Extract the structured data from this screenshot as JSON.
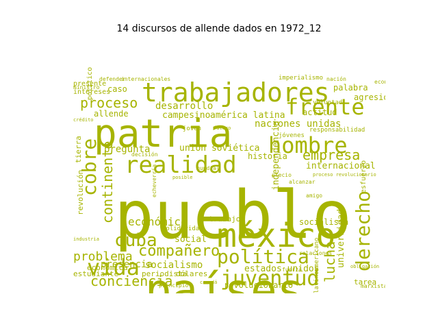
{
  "title": "14 discursos de allende dados en 1972_12",
  "colors": {
    "word": "#a6b400",
    "background": "#ffffff",
    "title": "#000000"
  },
  "words": [
    {
      "text": "pueblo",
      "size": 96,
      "orient": "h"
    },
    {
      "text": "países",
      "size": 64,
      "orient": "h"
    },
    {
      "text": "patria",
      "size": 56,
      "orient": "h"
    },
    {
      "text": "méxico",
      "size": 48,
      "orient": "h"
    },
    {
      "text": "trabajadores",
      "size": 38,
      "orient": "h"
    },
    {
      "text": "realidad",
      "size": 34,
      "orient": "h"
    },
    {
      "text": "frente",
      "size": 32,
      "orient": "h"
    },
    {
      "text": "hombre",
      "size": 32,
      "orient": "h"
    },
    {
      "text": "vida",
      "size": 32,
      "orient": "h"
    },
    {
      "text": "juventud",
      "size": 30,
      "orient": "h"
    },
    {
      "text": "política",
      "size": 28,
      "orient": "h"
    },
    {
      "text": "cobre",
      "size": 28,
      "orient": "v"
    },
    {
      "text": "derecho",
      "size": 28,
      "orient": "v"
    },
    {
      "text": "cuba",
      "size": 26,
      "orient": "h"
    },
    {
      "text": "compañero",
      "size": 22,
      "orient": "h"
    },
    {
      "text": "proceso",
      "size": 20,
      "orient": "h"
    },
    {
      "text": "empresa",
      "size": 20,
      "orient": "h"
    },
    {
      "text": "conciencia",
      "size": 20,
      "orient": "h"
    },
    {
      "text": "continente",
      "size": 20,
      "orient": "v"
    },
    {
      "text": "lucha",
      "size": 20,
      "orient": "v"
    },
    {
      "text": "problema",
      "size": 18,
      "orient": "h"
    },
    {
      "text": "económico",
      "size": 16,
      "orient": "h"
    },
    {
      "text": "naciones unidas",
      "size": 14,
      "orient": "h"
    },
    {
      "text": "desarrollo",
      "size": 14,
      "orient": "h"
    },
    {
      "text": "pregunta",
      "size": 14,
      "orient": "h"
    },
    {
      "text": "socialismo",
      "size": 14,
      "orient": "h"
    },
    {
      "text": "presencia",
      "size": 14,
      "orient": "h"
    },
    {
      "text": "estados unidos",
      "size": 13,
      "orient": "h"
    },
    {
      "text": "unión soviética",
      "size": 13,
      "orient": "h"
    },
    {
      "text": "internacional",
      "size": 13,
      "orient": "h"
    },
    {
      "text": "social",
      "size": 13,
      "orient": "h"
    },
    {
      "text": "independencia",
      "size": 13,
      "orient": "v"
    },
    {
      "text": "universidad",
      "size": 13,
      "orient": "v"
    },
    {
      "text": "campesino",
      "size": 13,
      "orient": "h"
    },
    {
      "text": "américa latina",
      "size": 13,
      "orient": "h"
    },
    {
      "text": "actitud",
      "size": 12,
      "orient": "h"
    },
    {
      "text": "agresión",
      "size": 12,
      "orient": "h"
    },
    {
      "text": "palabra",
      "size": 12,
      "orient": "h"
    },
    {
      "text": "allende",
      "size": 12,
      "orient": "h"
    },
    {
      "text": "caso",
      "size": 12,
      "orient": "h"
    },
    {
      "text": "historia",
      "size": 12,
      "orient": "h"
    },
    {
      "text": "socialista",
      "size": 12,
      "orient": "h"
    },
    {
      "text": "revolucionario",
      "size": 12,
      "orient": "h"
    },
    {
      "text": "tarea",
      "size": 11,
      "orient": "h"
    },
    {
      "text": "estudiante",
      "size": 11,
      "orient": "h"
    },
    {
      "text": "económica",
      "size": 11,
      "orient": "h"
    },
    {
      "text": "periodista",
      "size": 11,
      "orient": "h"
    },
    {
      "text": "dólares",
      "size": 11,
      "orient": "h"
    },
    {
      "text": "trabajo",
      "size": 11,
      "orient": "h"
    },
    {
      "text": "revolución",
      "size": 11,
      "orient": "v"
    },
    {
      "text": "tierra",
      "size": 11,
      "orient": "v"
    },
    {
      "text": "esfuerzo",
      "size": 10,
      "orient": "v"
    },
    {
      "text": "político",
      "size": 10,
      "orient": "v"
    },
    {
      "text": "intereses",
      "size": 10,
      "orient": "h"
    },
    {
      "text": "presente",
      "size": 10,
      "orient": "h"
    },
    {
      "text": "imperialismo",
      "size": 9,
      "orient": "h"
    },
    {
      "text": "latinoamericano",
      "size": 9,
      "orient": "v"
    },
    {
      "text": "solidaridad",
      "size": 9,
      "orient": "h"
    },
    {
      "text": "voluntad",
      "size": 9,
      "orient": "h"
    },
    {
      "text": "responsabilidad",
      "size": 9,
      "orient": "h"
    },
    {
      "text": "jóvenes",
      "size": 9,
      "orient": "h"
    },
    {
      "text": "joven",
      "size": 9,
      "orient": "h"
    },
    {
      "text": "principio",
      "size": 8,
      "orient": "h"
    },
    {
      "text": "internacionales",
      "size": 8,
      "orient": "h"
    },
    {
      "text": "nación",
      "size": 8,
      "orient": "h"
    },
    {
      "text": "mundial",
      "size": 8,
      "orient": "h"
    },
    {
      "text": "marxista",
      "size": 8,
      "orient": "h"
    },
    {
      "text": "amigo",
      "size": 8,
      "orient": "h"
    },
    {
      "text": "precio",
      "size": 8,
      "orient": "h"
    },
    {
      "text": "alcanzar",
      "size": 8,
      "orient": "h"
    },
    {
      "text": "defender",
      "size": 8,
      "orient": "h"
    },
    {
      "text": "echeverría",
      "size": 8,
      "orient": "v"
    },
    {
      "text": "decisión",
      "size": 8,
      "orient": "h"
    },
    {
      "text": "ministro",
      "size": 8,
      "orient": "h"
    },
    {
      "text": "relaciones",
      "size": 8,
      "orient": "h"
    },
    {
      "text": "fuerza",
      "size": 8,
      "orient": "h"
    },
    {
      "text": "economía",
      "size": 8,
      "orient": "h"
    },
    {
      "text": "proceso revolucionario",
      "size": 7,
      "orient": "h"
    },
    {
      "text": "futuro",
      "size": 7,
      "orient": "h"
    },
    {
      "text": "crédito",
      "size": 7,
      "orient": "h"
    },
    {
      "text": "industria",
      "size": 7,
      "orient": "h"
    },
    {
      "text": "posible",
      "size": 7,
      "orient": "h"
    },
    {
      "text": "obligación",
      "size": 7,
      "orient": "h"
    },
    {
      "text": "canadá",
      "size": 7,
      "orient": "h"
    }
  ]
}
